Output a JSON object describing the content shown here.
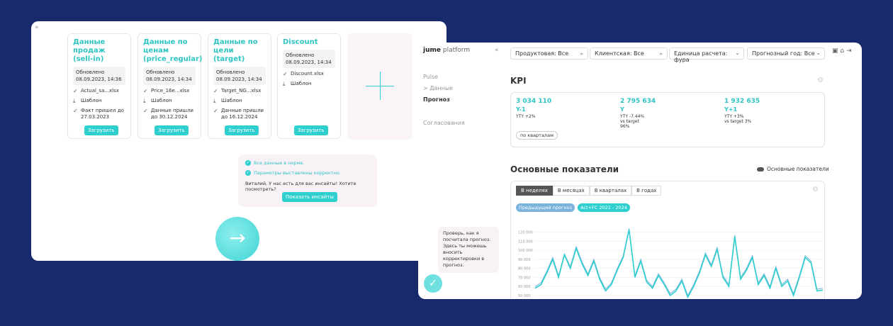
{
  "left": {
    "cards": [
      {
        "title": "Данные продаж (sell-in)",
        "updated": "Обновлено",
        "date": "08.09.2023, 14:36",
        "file": "Actual_sa...xlsx",
        "template": "Шаблон",
        "note": "Факт пришел до 27.03.2023",
        "button": "Загрузить"
      },
      {
        "title": "Данные по ценам (price_regular)",
        "updated": "Обновлено",
        "date": "08.09.2023, 14:34",
        "file": "Price_16e...xlsx",
        "template": "Шаблон",
        "note": "Данные пришли до 30.12.2024",
        "button": "Загрузить"
      },
      {
        "title": "Данные по цели (target)",
        "updated": "Обновлено",
        "date": "08.09.2023, 14:34",
        "file": "Target_NG...xlsx",
        "template": "Шаблон",
        "note": "Данные пришли до 16.12.2024",
        "button": "Загрузить"
      },
      {
        "title": "Discount",
        "updated": "Обновлено",
        "date": "08.09.2023, 14:34",
        "file": "Discount.xlsx",
        "template": "Шаблон",
        "button": "Загрузить"
      }
    ],
    "message": {
      "checks": [
        "Все данные в норме.",
        "Параметры выставлены корректно."
      ],
      "text": "Виталий, У нас есть для вас инсайты! Хотите посмотреть?",
      "button": "Показать инсайты"
    }
  },
  "right": {
    "logo": {
      "brand": "jume",
      "product": "platform"
    },
    "nav": [
      "Pulse",
      "> Данные",
      "Прогноз",
      "Согласования"
    ],
    "filters": [
      "Продуктовая: Все",
      "Клиентская: Все",
      "Единица расчета: фура",
      "Прогнозный год: Все"
    ],
    "kpi": {
      "title": "KPI",
      "columns": [
        {
          "value": "3 034 110",
          "label": "Y-1",
          "notes": [
            "YTY +2%"
          ]
        },
        {
          "value": "2 795 634",
          "label": "Y",
          "notes": [
            "YTY -7.44%",
            "vs target",
            "96%"
          ]
        },
        {
          "value": "1 932 635",
          "label": "Y+1",
          "notes": [
            "YTY +3%",
            "vs target 3%"
          ]
        }
      ],
      "chip": "по кварталам"
    },
    "main": {
      "title": "Основные показатели",
      "toggle": "Основные показатели",
      "tabs": [
        "В неделях",
        "В месяцах",
        "В кварталах",
        "В годах"
      ]
    },
    "assistant": "Проверь, как я посчитала прогноз. Здесь ты можешь вносить корректировки в прогноз."
  },
  "chart_data": {
    "type": "line",
    "ylim": [
      46000,
      126000
    ],
    "yticks": [
      {
        "value": 120000,
        "label": "120 000"
      },
      {
        "value": 110000,
        "label": "110 000"
      },
      {
        "value": 100000,
        "label": "100 000"
      },
      {
        "value": 90000,
        "label": "90 000"
      },
      {
        "value": 80000,
        "label": "80 000"
      },
      {
        "value": 70000,
        "label": "70 000"
      },
      {
        "value": 60000,
        "label": "60 000"
      },
      {
        "value": 50000,
        "label": "50 000"
      }
    ],
    "grid": true,
    "series": [
      {
        "name": "Предыдущий прогноз",
        "color": "#7ab3dc",
        "values": [
          60000,
          64000,
          77000,
          92000,
          72000,
          96000,
          82000,
          104000,
          87000,
          74000,
          90000,
          70000,
          57000,
          64000,
          80000,
          94000,
          124000,
          72000,
          90000,
          67000,
          60000,
          74000,
          64000,
          52000,
          57000,
          68000,
          50000,
          62000,
          77000,
          97000,
          84000,
          103000,
          72000,
          62000,
          117000,
          70000,
          80000,
          94000,
          64000,
          74000,
          60000,
          82000,
          62000,
          68000,
          52000,
          72000,
          94000,
          88000,
          57000,
          58000
        ]
      },
      {
        "name": "Act+FC 2021 - 2024",
        "color": "#2fcfcf",
        "values": [
          58000,
          62000,
          75000,
          90000,
          70000,
          95000,
          80000,
          102000,
          85000,
          72000,
          88000,
          68000,
          55000,
          62000,
          78000,
          92000,
          123000,
          70000,
          88000,
          65000,
          58000,
          72000,
          62000,
          50000,
          55000,
          66000,
          48000,
          60000,
          75000,
          95000,
          82000,
          101000,
          70000,
          60000,
          115000,
          68000,
          78000,
          92000,
          62000,
          72000,
          58000,
          80000,
          60000,
          66000,
          50000,
          70000,
          92000,
          86000,
          55000,
          56000
        ]
      }
    ]
  }
}
